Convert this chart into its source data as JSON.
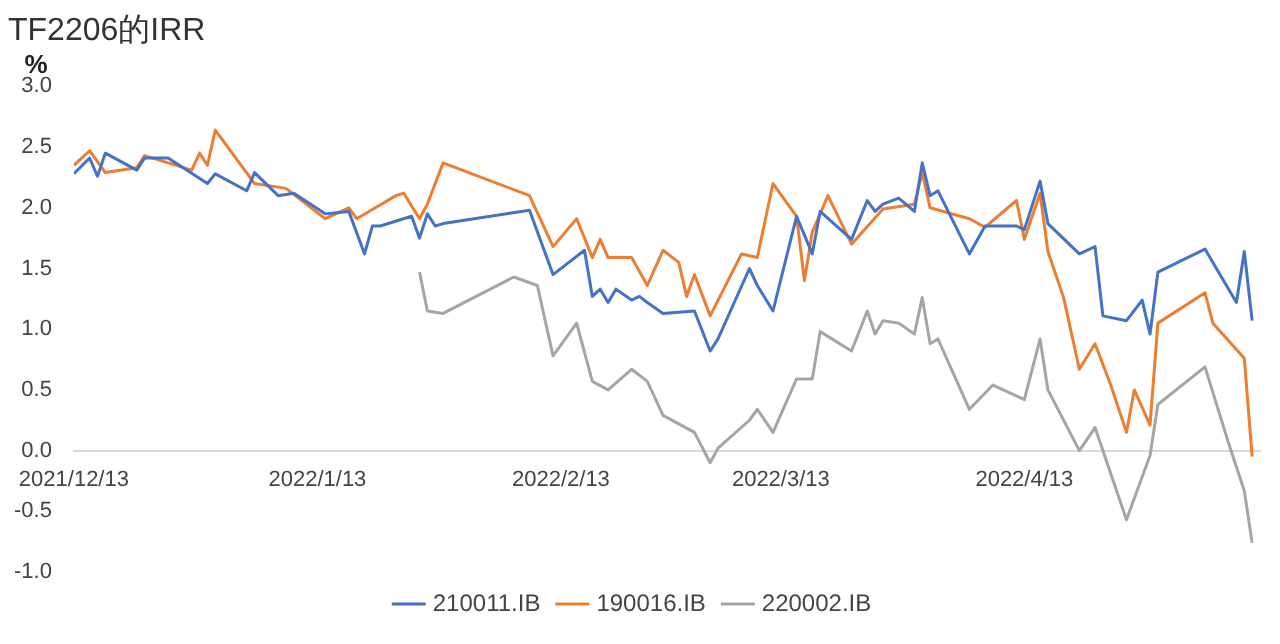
{
  "chart_data": {
    "type": "line",
    "title": "TF2206的IRR",
    "ylabel": "%",
    "xlim": [
      "2021-12-13",
      "2022-05-13"
    ],
    "xticks": [
      {
        "value": "2021-12-13",
        "label": "2021/12/13"
      },
      {
        "value": "2022-01-13",
        "label": "2022/1/13"
      },
      {
        "value": "2022-02-13",
        "label": "2022/2/13"
      },
      {
        "value": "2022-03-13",
        "label": "2022/3/13"
      },
      {
        "value": "2022-04-13",
        "label": "2022/4/13"
      }
    ],
    "ylim": [
      -1,
      3
    ],
    "yticks": [
      {
        "value": -1,
        "label": "-1.0"
      },
      {
        "value": -0.5,
        "label": "-0.5"
      },
      {
        "value": 0,
        "label": "0.0"
      },
      {
        "value": 0.5,
        "label": "0.5"
      },
      {
        "value": 1,
        "label": "1.0"
      },
      {
        "value": 1.5,
        "label": "1.5"
      },
      {
        "value": 2,
        "label": "2.0"
      },
      {
        "value": 2.5,
        "label": "2.5"
      },
      {
        "value": 3,
        "label": "3.0"
      }
    ],
    "grid": false,
    "legend": "bottom",
    "marker": "none",
    "line_style": "solid",
    "series": [
      {
        "name": "210011.IB",
        "color": "#4472c4",
        "x": [
          "2021-12-13",
          "2021-12-15",
          "2021-12-16",
          "2021-12-17",
          "2021-12-21",
          "2021-12-22",
          "2021-12-25",
          "2021-12-30",
          "2021-12-31",
          "2022-01-04",
          "2022-01-05",
          "2022-01-08",
          "2022-01-10",
          "2022-01-14",
          "2022-01-17",
          "2022-01-19",
          "2022-01-20",
          "2022-01-21",
          "2022-01-25",
          "2022-01-26",
          "2022-01-27",
          "2022-01-28",
          "2022-01-29",
          "2022-02-09",
          "2022-02-12",
          "2022-02-16",
          "2022-02-17",
          "2022-02-18",
          "2022-02-19",
          "2022-02-20",
          "2022-02-22",
          "2022-02-23",
          "2022-02-24",
          "2022-02-26",
          "2022-03-02",
          "2022-03-04",
          "2022-03-05",
          "2022-03-09",
          "2022-03-10",
          "2022-03-12",
          "2022-03-15",
          "2022-03-17",
          "2022-03-18",
          "2022-03-22",
          "2022-03-24",
          "2022-03-25",
          "2022-03-26",
          "2022-03-28",
          "2022-03-30",
          "2022-03-31",
          "2022-04-01",
          "2022-04-02",
          "2022-04-06",
          "2022-04-08",
          "2022-04-12",
          "2022-04-13",
          "2022-04-15",
          "2022-04-16",
          "2022-04-20",
          "2022-04-22",
          "2022-04-23",
          "2022-04-26",
          "2022-04-28",
          "2022-04-29",
          "2022-04-30",
          "2022-05-06",
          "2022-05-10",
          "2022-05-11",
          "2022-05-12"
        ],
        "values": [
          2.28,
          2.41,
          2.26,
          2.45,
          2.31,
          2.41,
          2.41,
          2.2,
          2.28,
          2.14,
          2.29,
          2.1,
          2.12,
          1.95,
          1.97,
          1.62,
          1.85,
          1.85,
          1.93,
          1.75,
          1.95,
          1.85,
          1.87,
          1.98,
          1.45,
          1.65,
          1.27,
          1.33,
          1.22,
          1.33,
          1.24,
          1.27,
          1.22,
          1.13,
          1.15,
          0.82,
          0.92,
          1.5,
          1.36,
          1.15,
          1.93,
          1.62,
          1.97,
          1.74,
          2.06,
          1.97,
          2.03,
          2.08,
          1.97,
          2.37,
          2.1,
          2.14,
          1.62,
          1.85,
          1.85,
          1.82,
          2.22,
          1.87,
          1.62,
          1.68,
          1.11,
          1.07,
          1.24,
          0.96,
          1.47,
          1.66,
          1.22,
          1.64,
          1.07
        ]
      },
      {
        "name": "190016.IB",
        "color": "#ed7d31",
        "x": [
          "2021-12-13",
          "2021-12-15",
          "2021-12-17",
          "2021-12-21",
          "2021-12-22",
          "2021-12-28",
          "2021-12-29",
          "2021-12-30",
          "2021-12-31",
          "2022-01-05",
          "2022-01-09",
          "2022-01-14",
          "2022-01-17",
          "2022-01-18",
          "2022-01-23",
          "2022-01-24",
          "2022-01-26",
          "2022-01-27",
          "2022-01-29",
          "2022-02-09",
          "2022-02-12",
          "2022-02-15",
          "2022-02-17",
          "2022-02-18",
          "2022-02-19",
          "2022-02-22",
          "2022-02-24",
          "2022-02-26",
          "2022-02-28",
          "2022-03-01",
          "2022-03-02",
          "2022-03-04",
          "2022-03-08",
          "2022-03-10",
          "2022-03-12",
          "2022-03-15",
          "2022-03-16",
          "2022-03-17",
          "2022-03-19",
          "2022-03-22",
          "2022-03-26",
          "2022-03-30",
          "2022-03-31",
          "2022-04-01",
          "2022-04-06",
          "2022-04-08",
          "2022-04-12",
          "2022-04-13",
          "2022-04-15",
          "2022-04-16",
          "2022-04-18",
          "2022-04-20",
          "2022-04-22",
          "2022-04-24",
          "2022-04-26",
          "2022-04-27",
          "2022-04-29",
          "2022-04-30",
          "2022-05-06",
          "2022-05-07",
          "2022-05-11",
          "2022-05-12"
        ],
        "values": [
          2.35,
          2.47,
          2.29,
          2.33,
          2.43,
          2.31,
          2.45,
          2.35,
          2.64,
          2.2,
          2.16,
          1.91,
          2.0,
          1.91,
          2.1,
          2.12,
          1.91,
          2.03,
          2.37,
          2.1,
          1.68,
          1.91,
          1.59,
          1.74,
          1.59,
          1.59,
          1.36,
          1.65,
          1.55,
          1.27,
          1.45,
          1.11,
          1.62,
          1.59,
          2.2,
          1.93,
          1.4,
          1.8,
          2.1,
          1.7,
          1.99,
          2.03,
          2.29,
          2.0,
          1.91,
          1.84,
          2.06,
          1.74,
          2.12,
          1.64,
          1.26,
          0.67,
          0.88,
          0.54,
          0.15,
          0.5,
          0.21,
          1.05,
          1.3,
          1.05,
          0.76,
          -0.05
        ]
      },
      {
        "name": "220002.IB",
        "color": "#a5a5a5",
        "x": [
          "2022-01-26",
          "2022-01-27",
          "2022-01-29",
          "2022-02-07",
          "2022-02-10",
          "2022-02-12",
          "2022-02-15",
          "2022-02-17",
          "2022-02-19",
          "2022-02-22",
          "2022-02-24",
          "2022-02-26",
          "2022-03-02",
          "2022-03-04",
          "2022-03-05",
          "2022-03-09",
          "2022-03-10",
          "2022-03-12",
          "2022-03-15",
          "2022-03-17",
          "2022-03-18",
          "2022-03-22",
          "2022-03-24",
          "2022-03-25",
          "2022-03-26",
          "2022-03-28",
          "2022-03-30",
          "2022-03-31",
          "2022-04-01",
          "2022-04-02",
          "2022-04-06",
          "2022-04-09",
          "2022-04-13",
          "2022-04-15",
          "2022-04-16",
          "2022-04-20",
          "2022-04-22",
          "2022-04-26",
          "2022-04-29",
          "2022-04-30",
          "2022-05-06",
          "2022-05-09",
          "2022-05-11",
          "2022-05-12"
        ],
        "values": [
          1.47,
          1.15,
          1.13,
          1.43,
          1.36,
          0.78,
          1.05,
          0.57,
          0.5,
          0.67,
          0.57,
          0.29,
          0.15,
          -0.1,
          0.02,
          0.25,
          0.34,
          0.15,
          0.59,
          0.59,
          0.98,
          0.82,
          1.15,
          0.96,
          1.07,
          1.05,
          0.96,
          1.26,
          0.88,
          0.92,
          0.34,
          0.54,
          0.42,
          0.92,
          0.5,
          0.0,
          0.19,
          -0.57,
          -0.04,
          0.38,
          0.69,
          0.06,
          -0.33,
          -0.76
        ]
      }
    ]
  }
}
